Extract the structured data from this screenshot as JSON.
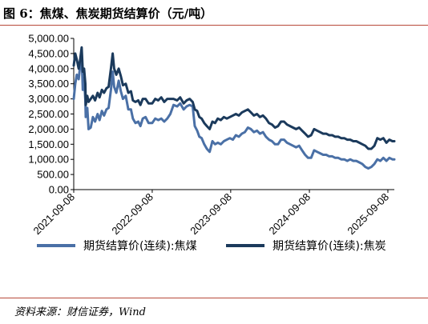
{
  "header": {
    "title": "图 6：焦煤、焦炭期货结算价（元/吨）"
  },
  "footer": {
    "source": "资料来源：财信证券，Wind"
  },
  "chart_data": {
    "type": "line",
    "title": "焦煤、焦炭期货结算价（元/吨）",
    "xlabel": "",
    "ylabel": "",
    "ylim": [
      0,
      5000
    ],
    "yticks": [
      "5,000.00",
      "4,500.00",
      "4,000.00",
      "3,500.00",
      "3,000.00",
      "2,500.00",
      "2,000.00",
      "1,500.00",
      "1,000.00",
      "500.00",
      "0.00"
    ],
    "ytick_values": [
      5000,
      4500,
      4000,
      3500,
      3000,
      2500,
      2000,
      1500,
      1000,
      500,
      0
    ],
    "xlim": [
      "2021-09-08",
      "2025-10-08"
    ],
    "xticks": [
      "2021-09-08",
      "2022-09-08",
      "2023-09-08",
      "2024-09-08",
      "2025-09-08"
    ],
    "grid": false,
    "legend": "bottom",
    "colors": {
      "coking_coal": "#4a70a6",
      "coke": "#1b3a5c",
      "rule": "#b8493a"
    },
    "series": [
      {
        "name": "期货结算价(连续):焦煤",
        "key": "coking_coal",
        "points": [
          [
            "2021-09-08",
            3000
          ],
          [
            "2021-09-15",
            3500
          ],
          [
            "2021-09-22",
            3800
          ],
          [
            "2021-10-01",
            3650
          ],
          [
            "2021-10-08",
            4100
          ],
          [
            "2021-10-15",
            4450
          ],
          [
            "2021-10-20",
            3300
          ],
          [
            "2021-10-26",
            3700
          ],
          [
            "2021-11-01",
            2950
          ],
          [
            "2021-11-03",
            2400
          ],
          [
            "2021-11-10",
            2700
          ],
          [
            "2021-11-16",
            2000
          ],
          [
            "2021-11-26",
            2050
          ],
          [
            "2021-12-06",
            2400
          ],
          [
            "2021-12-16",
            2250
          ],
          [
            "2021-12-28",
            2500
          ],
          [
            "2022-01-06",
            2300
          ],
          [
            "2022-01-17",
            2600
          ],
          [
            "2022-01-27",
            2450
          ],
          [
            "2022-02-07",
            2650
          ],
          [
            "2022-02-17",
            2700
          ],
          [
            "2022-02-28",
            3300
          ],
          [
            "2022-03-08",
            3900
          ],
          [
            "2022-03-15",
            3400
          ],
          [
            "2022-03-25",
            3200
          ],
          [
            "2022-04-05",
            3600
          ],
          [
            "2022-04-15",
            3250
          ],
          [
            "2022-04-25",
            3000
          ],
          [
            "2022-05-08",
            3100
          ],
          [
            "2022-05-20",
            2650
          ],
          [
            "2022-06-01",
            2650
          ],
          [
            "2022-06-10",
            2350
          ],
          [
            "2022-06-22",
            2200
          ],
          [
            "2022-07-05",
            2250
          ],
          [
            "2022-07-15",
            2100
          ],
          [
            "2022-07-26",
            2350
          ],
          [
            "2022-08-08",
            2400
          ],
          [
            "2022-08-22",
            2200
          ],
          [
            "2022-09-08",
            2200
          ],
          [
            "2022-09-22",
            2350
          ],
          [
            "2022-10-06",
            2300
          ],
          [
            "2022-10-20",
            2350
          ],
          [
            "2022-11-03",
            2250
          ],
          [
            "2022-11-17",
            2350
          ],
          [
            "2022-12-01",
            2500
          ],
          [
            "2022-12-16",
            2800
          ],
          [
            "2023-01-02",
            2750
          ],
          [
            "2023-01-16",
            2850
          ],
          [
            "2023-02-01",
            2650
          ],
          [
            "2023-02-15",
            2750
          ],
          [
            "2023-03-01",
            2800
          ],
          [
            "2023-03-15",
            2750
          ],
          [
            "2023-03-25",
            2100
          ],
          [
            "2023-04-05",
            1950
          ],
          [
            "2023-04-15",
            1750
          ],
          [
            "2023-04-26",
            1700
          ],
          [
            "2023-05-08",
            1500
          ],
          [
            "2023-05-20",
            1350
          ],
          [
            "2023-06-02",
            1250
          ],
          [
            "2023-06-15",
            1600
          ],
          [
            "2023-06-27",
            1500
          ],
          [
            "2023-07-10",
            1550
          ],
          [
            "2023-07-24",
            1500
          ],
          [
            "2023-08-07",
            1600
          ],
          [
            "2023-08-21",
            1650
          ],
          [
            "2023-09-04",
            1700
          ],
          [
            "2023-09-18",
            1650
          ],
          [
            "2023-10-02",
            1800
          ],
          [
            "2023-10-16",
            1750
          ],
          [
            "2023-10-30",
            1850
          ],
          [
            "2023-11-13",
            1900
          ],
          [
            "2023-11-27",
            2050
          ],
          [
            "2023-12-11",
            2000
          ],
          [
            "2023-12-25",
            1900
          ],
          [
            "2024-01-08",
            1950
          ],
          [
            "2024-01-22",
            1850
          ],
          [
            "2024-02-05",
            1900
          ],
          [
            "2024-02-19",
            1750
          ],
          [
            "2024-03-04",
            1650
          ],
          [
            "2024-03-18",
            1600
          ],
          [
            "2024-04-01",
            1500
          ],
          [
            "2024-04-15",
            1500
          ],
          [
            "2024-04-29",
            1650
          ],
          [
            "2024-05-13",
            1650
          ],
          [
            "2024-05-27",
            1550
          ],
          [
            "2024-06-10",
            1500
          ],
          [
            "2024-06-24",
            1450
          ],
          [
            "2024-07-08",
            1400
          ],
          [
            "2024-07-22",
            1450
          ],
          [
            "2024-08-05",
            1300
          ],
          [
            "2024-08-19",
            1150
          ],
          [
            "2024-09-02",
            1050
          ],
          [
            "2024-09-16",
            1050
          ],
          [
            "2024-09-30",
            1300
          ],
          [
            "2024-10-14",
            1250
          ],
          [
            "2024-10-28",
            1200
          ],
          [
            "2024-11-11",
            1150
          ],
          [
            "2024-11-25",
            1150
          ],
          [
            "2024-12-09",
            1100
          ],
          [
            "2024-12-23",
            1100
          ],
          [
            "2025-01-06",
            1050
          ],
          [
            "2025-01-20",
            1050
          ],
          [
            "2025-02-03",
            1000
          ],
          [
            "2025-02-17",
            1000
          ],
          [
            "2025-03-03",
            950
          ],
          [
            "2025-03-17",
            1000
          ],
          [
            "2025-03-31",
            950
          ],
          [
            "2025-04-14",
            950
          ],
          [
            "2025-04-28",
            900
          ],
          [
            "2025-05-12",
            850
          ],
          [
            "2025-05-26",
            750
          ],
          [
            "2025-06-09",
            700
          ],
          [
            "2025-06-23",
            750
          ],
          [
            "2025-07-07",
            850
          ],
          [
            "2025-07-21",
            1000
          ],
          [
            "2025-08-04",
            950
          ],
          [
            "2025-08-18",
            1050
          ],
          [
            "2025-09-01",
            950
          ],
          [
            "2025-09-15",
            1050
          ],
          [
            "2025-09-29",
            1000
          ],
          [
            "2025-10-08",
            1000
          ]
        ]
      },
      {
        "name": "期货结算价(连续):焦炭",
        "key": "coke",
        "points": [
          [
            "2021-09-08",
            4100
          ],
          [
            "2021-09-15",
            4500
          ],
          [
            "2021-09-22",
            4300
          ],
          [
            "2021-10-01",
            4000
          ],
          [
            "2021-10-08",
            4300
          ],
          [
            "2021-10-15",
            4700
          ],
          [
            "2021-10-20",
            3900
          ],
          [
            "2021-10-26",
            4000
          ],
          [
            "2021-11-01",
            3500
          ],
          [
            "2021-11-03",
            2800
          ],
          [
            "2021-11-10",
            3100
          ],
          [
            "2021-11-16",
            2900
          ],
          [
            "2021-11-26",
            3000
          ],
          [
            "2021-12-06",
            3100
          ],
          [
            "2021-12-16",
            2950
          ],
          [
            "2021-12-28",
            3200
          ],
          [
            "2022-01-06",
            3050
          ],
          [
            "2022-01-17",
            3300
          ],
          [
            "2022-01-27",
            3200
          ],
          [
            "2022-02-07",
            3350
          ],
          [
            "2022-02-17",
            3400
          ],
          [
            "2022-02-28",
            4000
          ],
          [
            "2022-03-08",
            4500
          ],
          [
            "2022-03-15",
            4000
          ],
          [
            "2022-03-25",
            3800
          ],
          [
            "2022-04-05",
            4000
          ],
          [
            "2022-04-15",
            3750
          ],
          [
            "2022-04-25",
            3450
          ],
          [
            "2022-05-08",
            3500
          ],
          [
            "2022-05-20",
            3200
          ],
          [
            "2022-06-01",
            3250
          ],
          [
            "2022-06-10",
            2950
          ],
          [
            "2022-06-22",
            2900
          ],
          [
            "2022-07-05",
            2950
          ],
          [
            "2022-07-15",
            2800
          ],
          [
            "2022-07-26",
            3000
          ],
          [
            "2022-08-08",
            3000
          ],
          [
            "2022-08-22",
            2850
          ],
          [
            "2022-09-08",
            2850
          ],
          [
            "2022-09-22",
            3000
          ],
          [
            "2022-10-06",
            2950
          ],
          [
            "2022-10-20",
            3050
          ],
          [
            "2022-11-03",
            2900
          ],
          [
            "2022-11-17",
            3000
          ],
          [
            "2022-12-01",
            3000
          ],
          [
            "2022-12-16",
            3000
          ],
          [
            "2023-01-02",
            2950
          ],
          [
            "2023-01-16",
            3050
          ],
          [
            "2023-02-01",
            2850
          ],
          [
            "2023-02-15",
            2950
          ],
          [
            "2023-03-01",
            3000
          ],
          [
            "2023-03-15",
            2900
          ],
          [
            "2023-03-25",
            2650
          ],
          [
            "2023-04-05",
            2600
          ],
          [
            "2023-04-15",
            2400
          ],
          [
            "2023-04-26",
            2350
          ],
          [
            "2023-05-08",
            2200
          ],
          [
            "2023-05-20",
            2100
          ],
          [
            "2023-06-02",
            2000
          ],
          [
            "2023-06-15",
            2250
          ],
          [
            "2023-06-27",
            2200
          ],
          [
            "2023-07-10",
            2350
          ],
          [
            "2023-07-24",
            2300
          ],
          [
            "2023-08-07",
            2400
          ],
          [
            "2023-08-21",
            2350
          ],
          [
            "2023-09-04",
            2400
          ],
          [
            "2023-09-18",
            2450
          ],
          [
            "2023-10-02",
            2500
          ],
          [
            "2023-10-16",
            2450
          ],
          [
            "2023-10-30",
            2550
          ],
          [
            "2023-11-13",
            2600
          ],
          [
            "2023-11-27",
            2650
          ],
          [
            "2023-12-11",
            2550
          ],
          [
            "2023-12-25",
            2450
          ],
          [
            "2024-01-08",
            2500
          ],
          [
            "2024-01-22",
            2400
          ],
          [
            "2024-02-05",
            2450
          ],
          [
            "2024-02-19",
            2350
          ],
          [
            "2024-03-04",
            2200
          ],
          [
            "2024-03-18",
            2150
          ],
          [
            "2024-04-01",
            2050
          ],
          [
            "2024-04-15",
            2100
          ],
          [
            "2024-04-29",
            2250
          ],
          [
            "2024-05-13",
            2250
          ],
          [
            "2024-05-27",
            2150
          ],
          [
            "2024-06-10",
            2100
          ],
          [
            "2024-06-24",
            2050
          ],
          [
            "2024-07-08",
            2000
          ],
          [
            "2024-07-22",
            2050
          ],
          [
            "2024-08-05",
            1950
          ],
          [
            "2024-08-19",
            1850
          ],
          [
            "2024-09-02",
            1750
          ],
          [
            "2024-09-16",
            1800
          ],
          [
            "2024-09-30",
            2000
          ],
          [
            "2024-10-14",
            1950
          ],
          [
            "2024-10-28",
            1900
          ],
          [
            "2024-11-11",
            1850
          ],
          [
            "2024-11-25",
            1850
          ],
          [
            "2024-12-09",
            1800
          ],
          [
            "2024-12-23",
            1800
          ],
          [
            "2025-01-06",
            1750
          ],
          [
            "2025-01-20",
            1750
          ],
          [
            "2025-02-03",
            1700
          ],
          [
            "2025-02-17",
            1700
          ],
          [
            "2025-03-03",
            1650
          ],
          [
            "2025-03-17",
            1650
          ],
          [
            "2025-03-31",
            1600
          ],
          [
            "2025-04-14",
            1600
          ],
          [
            "2025-04-28",
            1550
          ],
          [
            "2025-05-12",
            1500
          ],
          [
            "2025-05-26",
            1450
          ],
          [
            "2025-06-09",
            1350
          ],
          [
            "2025-06-23",
            1350
          ],
          [
            "2025-07-07",
            1450
          ],
          [
            "2025-07-21",
            1700
          ],
          [
            "2025-08-04",
            1650
          ],
          [
            "2025-08-18",
            1700
          ],
          [
            "2025-09-01",
            1550
          ],
          [
            "2025-09-15",
            1650
          ],
          [
            "2025-09-29",
            1600
          ],
          [
            "2025-10-08",
            1600
          ]
        ]
      }
    ]
  }
}
